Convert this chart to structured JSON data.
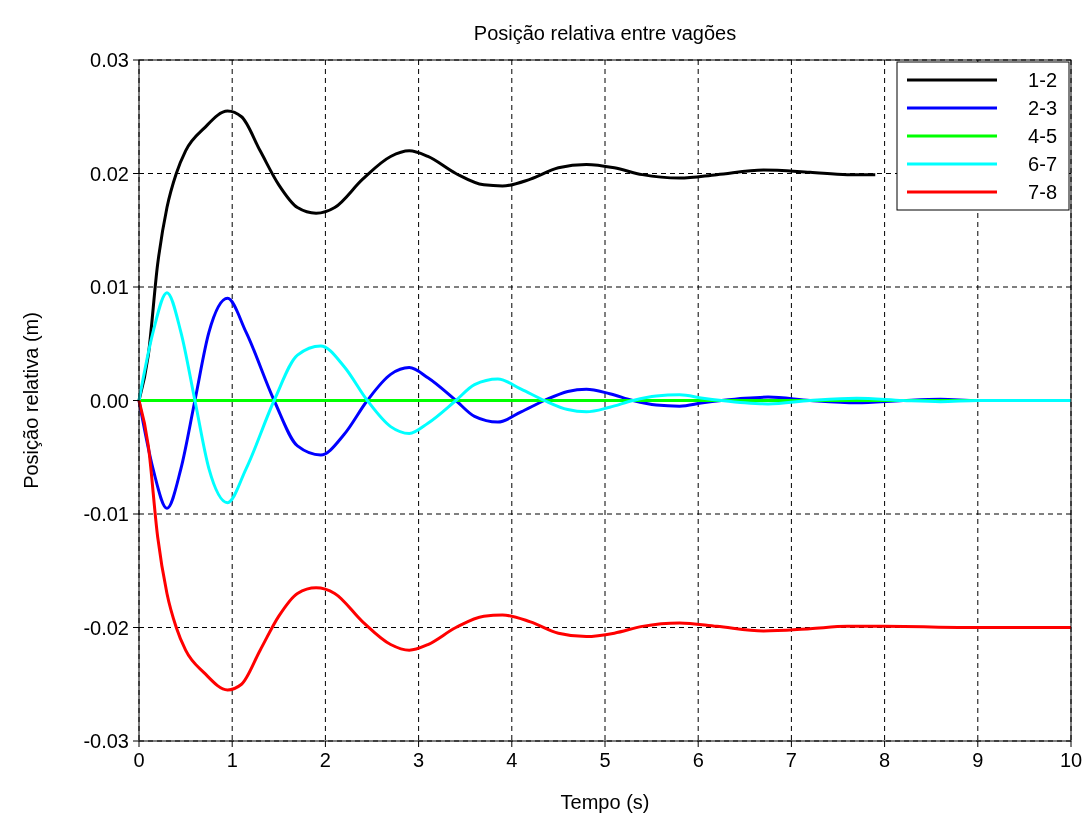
{
  "chart_data": {
    "type": "line",
    "title": "Posição relativa entre vagões",
    "xlabel": "Tempo (s)",
    "ylabel": "Posição relativa (m)",
    "x": [
      0,
      0.1,
      0.2,
      0.3,
      0.4,
      0.5,
      0.7,
      0.95,
      1.1,
      1.3,
      1.5,
      1.7,
      1.9,
      2.1,
      2.4,
      2.7,
      2.9,
      3.1,
      3.4,
      3.7,
      3.9,
      4.2,
      4.5,
      4.8,
      5.1,
      5.4,
      5.8,
      6.2,
      6.7,
      7.2,
      7.6,
      8,
      9,
      10
    ],
    "series": [
      {
        "name": "1-2",
        "color": "#000000",
        "x": [
          0,
          0.1,
          0.2,
          0.3,
          0.4,
          0.5,
          0.7,
          0.95,
          1.1,
          1.3,
          1.5,
          1.7,
          1.9,
          2.1,
          2.4,
          2.7,
          2.9,
          3.1,
          3.4,
          3.7,
          3.9,
          4.2,
          4.5,
          4.8,
          5.1,
          5.4,
          5.8,
          6.2,
          6.7,
          7.2,
          7.6,
          7.9
        ],
        "values": [
          0,
          0.004,
          0.012,
          0.017,
          0.02,
          0.022,
          0.024,
          0.0255,
          0.025,
          0.022,
          0.019,
          0.017,
          0.0165,
          0.017,
          0.0195,
          0.0215,
          0.022,
          0.0215,
          0.02,
          0.019,
          0.0189,
          0.0195,
          0.0205,
          0.0208,
          0.0205,
          0.0199,
          0.0196,
          0.0199,
          0.0203,
          0.0201,
          0.0199,
          0.0199
        ]
      },
      {
        "name": "2-3",
        "color": "#0000ff",
        "x": [
          0,
          0.15,
          0.3,
          0.45,
          0.6,
          0.75,
          0.95,
          1.15,
          1.45,
          1.7,
          1.95,
          2.2,
          2.45,
          2.7,
          2.9,
          3.1,
          3.4,
          3.6,
          3.85,
          4.1,
          4.35,
          4.6,
          4.8,
          5.05,
          5.3,
          5.55,
          5.8,
          6.05,
          6.25,
          6.5,
          6.75,
          7.2,
          7.7,
          8.2,
          8.6,
          9,
          10
        ],
        "values": [
          0,
          -0.006,
          -0.0095,
          -0.006,
          0,
          0.006,
          0.009,
          0.006,
          0,
          -0.004,
          -0.0048,
          -0.003,
          0,
          0.0023,
          0.0029,
          0.002,
          0,
          -0.0014,
          -0.0019,
          -0.001,
          0,
          0.0008,
          0.001,
          0.0006,
          0,
          -0.0004,
          -0.0005,
          -0.0002,
          0,
          0.0002,
          0.0003,
          0,
          -0.0002,
          0,
          0.0001,
          0,
          0
        ]
      },
      {
        "name": "4-5",
        "color": "#00ff00",
        "x": [
          0,
          10
        ],
        "values": [
          0,
          0
        ]
      },
      {
        "name": "6-7",
        "color": "#00ffff",
        "x": [
          0,
          0.15,
          0.3,
          0.45,
          0.6,
          0.75,
          0.95,
          1.15,
          1.45,
          1.7,
          1.95,
          2.2,
          2.45,
          2.7,
          2.9,
          3.1,
          3.4,
          3.6,
          3.85,
          4.1,
          4.35,
          4.6,
          4.8,
          5.05,
          5.3,
          5.55,
          5.8,
          6.05,
          6.25,
          6.5,
          6.75,
          7.2,
          7.7,
          8.2,
          8.6,
          9,
          10
        ],
        "values": [
          0,
          0.006,
          0.0095,
          0.006,
          0,
          -0.006,
          -0.009,
          -0.006,
          0,
          0.004,
          0.0048,
          0.003,
          0,
          -0.0023,
          -0.0029,
          -0.002,
          0,
          0.0014,
          0.0019,
          0.001,
          0,
          -0.0008,
          -0.001,
          -0.0006,
          0,
          0.0004,
          0.0005,
          0.0002,
          0,
          -0.0002,
          -0.0003,
          0,
          0.0002,
          0,
          -0.0001,
          0,
          0
        ]
      },
      {
        "name": "7-8",
        "color": "#ff0000",
        "values": [
          0,
          -0.004,
          -0.012,
          -0.017,
          -0.02,
          -0.022,
          -0.024,
          -0.0255,
          -0.025,
          -0.022,
          -0.019,
          -0.017,
          -0.0165,
          -0.017,
          -0.0195,
          -0.0215,
          -0.022,
          -0.0215,
          -0.02,
          -0.019,
          -0.0189,
          -0.0195,
          -0.0205,
          -0.0208,
          -0.0205,
          -0.0199,
          -0.0196,
          -0.0199,
          -0.0203,
          -0.0201,
          -0.0199,
          -0.0199,
          -0.02,
          -0.02
        ]
      }
    ],
    "xlim": [
      0,
      10
    ],
    "xticks": [
      0,
      1,
      2,
      3,
      4,
      5,
      6,
      7,
      8,
      9,
      10
    ],
    "ylim": [
      -0.03,
      0.03
    ],
    "yticks": [
      {
        "value": -0.03,
        "label": "-0.03"
      },
      {
        "value": -0.02,
        "label": "-0.02"
      },
      {
        "value": -0.01,
        "label": "-0.01"
      },
      {
        "value": 0,
        "label": "0.00"
      },
      {
        "value": 0.01,
        "label": "0.01"
      },
      {
        "value": 0.02,
        "label": "0.02"
      },
      {
        "value": 0.03,
        "label": "0.03"
      }
    ],
    "grid": true,
    "legend": "top right",
    "line_style": "solid"
  }
}
